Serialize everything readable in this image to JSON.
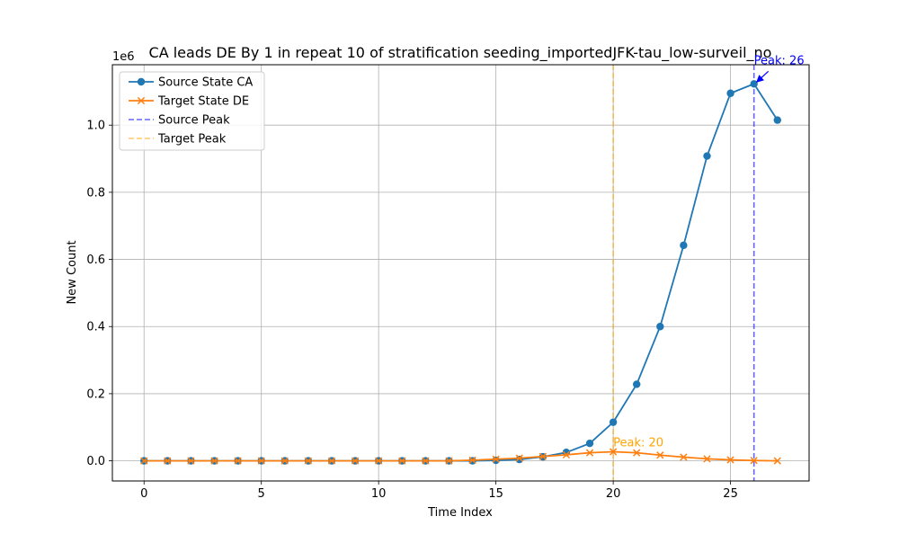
{
  "chart_data": {
    "type": "line",
    "title": "CA leads DE By 1 in repeat 10 of stratification seeding_importedJFK-tau_low-surveil_no",
    "xlabel": "Time Index",
    "ylabel": "New Count",
    "y_offset_label": "1e6",
    "xlim": [
      -1.35,
      28.35
    ],
    "ylim": [
      -60000,
      1180000
    ],
    "x_ticks": [
      0,
      5,
      10,
      15,
      20,
      25
    ],
    "y_ticks": [
      0,
      200000,
      400000,
      600000,
      800000,
      1000000
    ],
    "y_tick_labels": [
      "0.0",
      "0.2",
      "0.4",
      "0.6",
      "0.8",
      "1.0"
    ],
    "grid": true,
    "legend_position": "top-left",
    "x": [
      0,
      1,
      2,
      3,
      4,
      5,
      6,
      7,
      8,
      9,
      10,
      11,
      12,
      13,
      14,
      15,
      16,
      17,
      18,
      19,
      20,
      21,
      22,
      23,
      24,
      25,
      26,
      27
    ],
    "series": [
      {
        "name": "Source State CA",
        "color": "#1f77b4",
        "marker": "circle",
        "values": [
          0,
          0,
          0,
          0,
          0,
          0,
          0,
          0,
          0,
          0,
          0,
          0,
          0,
          0,
          0,
          1500,
          4000,
          12000,
          25000,
          52000,
          115000,
          228000,
          400000,
          642000,
          908000,
          1095000,
          1123000,
          1015000
        ]
      },
      {
        "name": "Target State DE",
        "color": "#ff7f0e",
        "marker": "x",
        "values": [
          0,
          0,
          0,
          0,
          0,
          0,
          0,
          0,
          0,
          0,
          0,
          0,
          0,
          0,
          2000,
          5000,
          8000,
          13000,
          18000,
          24000,
          27000,
          24000,
          17000,
          11000,
          6000,
          3000,
          1000,
          0
        ]
      }
    ],
    "vlines": [
      {
        "name": "Source Peak",
        "x": 26,
        "color": "#0000ff",
        "opacity": 0.6
      },
      {
        "name": "Target Peak",
        "x": 20,
        "color": "#ffa500",
        "opacity": 0.6
      }
    ],
    "annotations": [
      {
        "text": "Peak: 26",
        "x": 26,
        "y": 1123000,
        "color": "#0000ff",
        "arrow": true
      },
      {
        "text": "Peak: 20",
        "x": 20,
        "y": 27000,
        "color": "#ffa500",
        "arrow": false
      }
    ]
  }
}
